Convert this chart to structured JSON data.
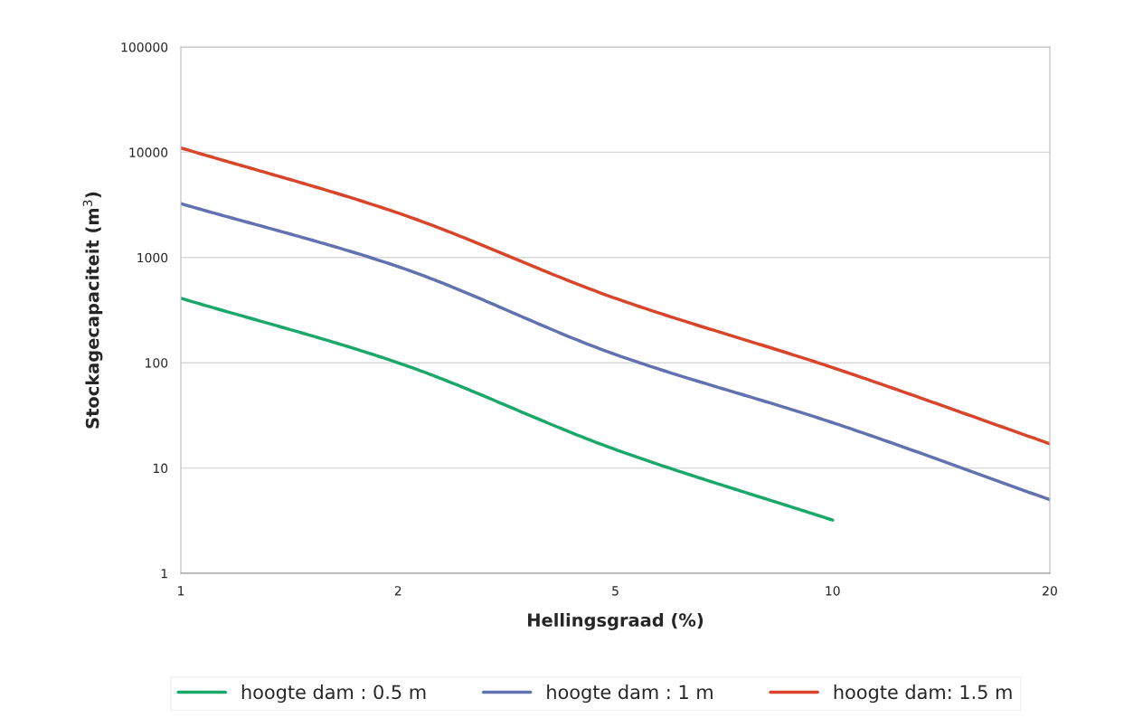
{
  "chart_data": {
    "type": "line",
    "xlabel": "Hellingsgraad (%)",
    "ylabel": "Stockagecapaciteit (m$^{3}$)",
    "categories": [
      "1",
      "2",
      "5",
      "10",
      "20"
    ],
    "series": [
      {
        "name": "hoogte dam : 0.5 m",
        "color": "#1aa86b",
        "values": [
          410,
          100,
          15,
          3.2,
          null
        ]
      },
      {
        "name": "hoogte dam : 1 m",
        "color": "#6272b0",
        "values": [
          3250,
          820,
          120,
          27,
          5
        ]
      },
      {
        "name": "hoogte dam: 1.5 m",
        "color": "#d9452b",
        "values": [
          11000,
          2650,
          410,
          90,
          17
        ]
      }
    ],
    "log": "y",
    "ylim": [
      1,
      100000
    ],
    "yticks": [
      1,
      10,
      100,
      1000,
      10000,
      100000
    ],
    "grid": "y",
    "legend": "bottom",
    "marker": "none",
    "line_style": "solid"
  }
}
